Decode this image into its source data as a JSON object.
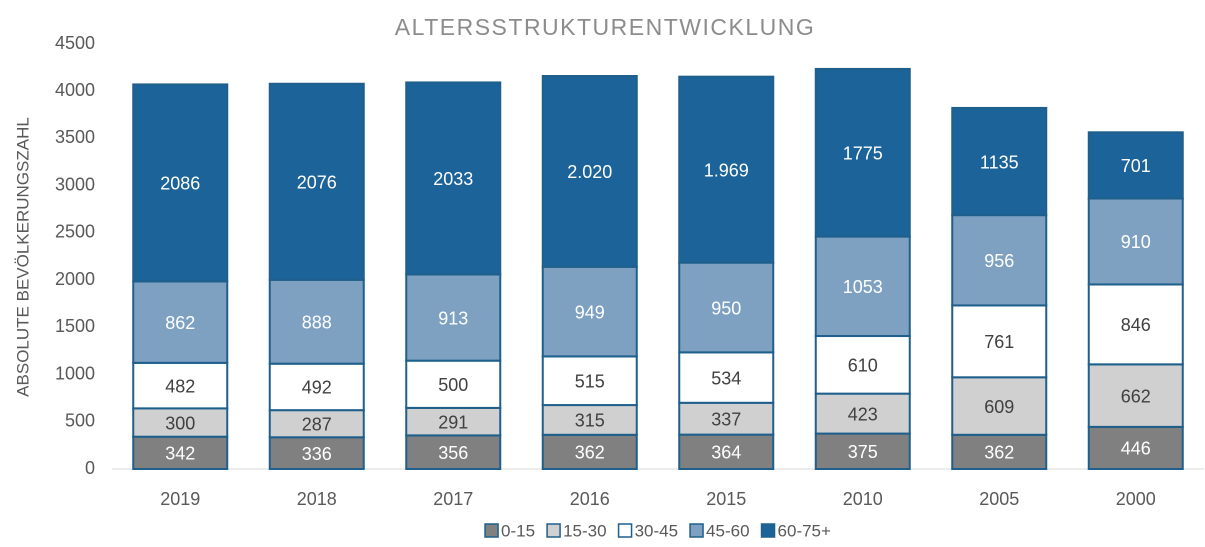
{
  "chart_data": {
    "type": "stacked_bar",
    "title": "ALTERSSTRUKTURENTWICKLUNG",
    "y_label": "ABSOLUTE BEVÖLKERUNGSZAHL",
    "categories": [
      "2019",
      "2018",
      "2017",
      "2016",
      "2015",
      "2010",
      "2005",
      "2000"
    ],
    "series": [
      {
        "name": "0-15",
        "color": "#808080",
        "label_color": "#ffffff",
        "values": [
          342,
          336,
          356,
          362,
          364,
          375,
          362,
          446
        ]
      },
      {
        "name": "15-30",
        "color": "#d0d0d0",
        "label_color": "#404040",
        "values": [
          300,
          287,
          291,
          315,
          337,
          423,
          609,
          662
        ]
      },
      {
        "name": "30-45",
        "color": "#ffffff",
        "label_color": "#404040",
        "values": [
          482,
          492,
          500,
          515,
          534,
          610,
          761,
          846
        ]
      },
      {
        "name": "45-60",
        "color": "#7ea1c2",
        "label_color": "#ffffff",
        "values": [
          862,
          888,
          913,
          949,
          950,
          1053,
          956,
          910
        ]
      },
      {
        "name": "60-75+",
        "color": "#1c6399",
        "label_color": "#ffffff",
        "values": [
          2086,
          2076,
          2033,
          2020,
          1969,
          1775,
          1135,
          701
        ],
        "value_labels": [
          "2086",
          "2076",
          "2033",
          "2.020",
          "1.969",
          "1775",
          "1135",
          "701"
        ]
      }
    ],
    "ylim": [
      0,
      4500
    ],
    "yticks": [
      0,
      500,
      1000,
      1500,
      2000,
      2500,
      3000,
      3500,
      4000,
      4500
    ],
    "grid": false,
    "legend": "bottom"
  }
}
